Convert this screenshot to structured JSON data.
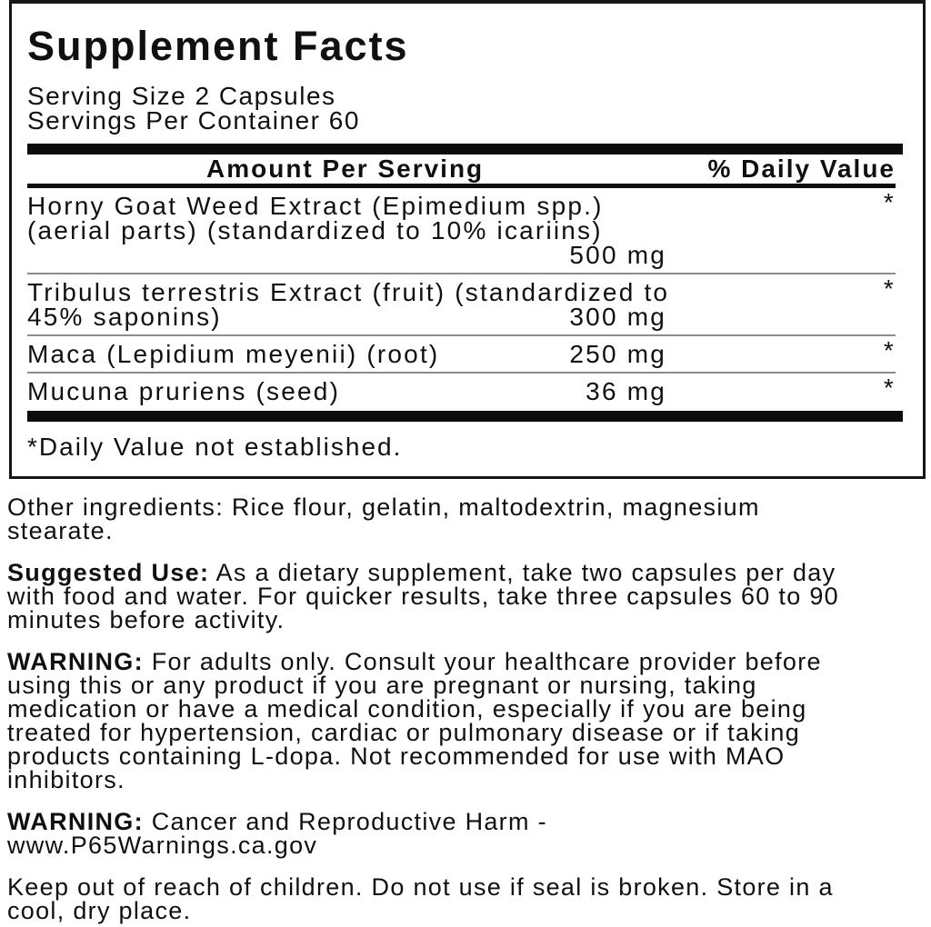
{
  "panel": {
    "title": "Supplement Facts",
    "serving_size": "Serving Size 2 Capsules",
    "servings_per_container": "Servings Per Container 60",
    "header": {
      "amount": "Amount Per Serving",
      "daily_value": "% Daily Value"
    },
    "rows": [
      {
        "line1": "Horny Goat Weed Extract (Epimedium spp.)",
        "line2": "(aerial parts) (standardized to 10% icariins)",
        "amount": "500 mg",
        "dv": "*"
      },
      {
        "line1": "Tribulus terrestris Extract (fruit) (standardized to",
        "line2": "45% saponins)",
        "amount": "300 mg",
        "dv": "*"
      },
      {
        "line1": "Maca (Lepidium meyenii) (root)",
        "amount": "250 mg",
        "dv": "*"
      },
      {
        "line1": "Mucuna pruriens (seed)",
        "amount": "36 mg",
        "dv": "*"
      }
    ],
    "footnote": "*Daily Value not established."
  },
  "info": {
    "other_ingredients": "Other ingredients: Rice flour, gelatin, maltodextrin, magnesium\nstearate.",
    "suggested_use_label": "Suggested Use:",
    "suggested_use_text": " As a dietary supplement, take two capsules per day\nwith food and water. For quicker results, take three capsules 60 to 90\nminutes before activity.",
    "warning1_label": "WARNING:",
    "warning1_text": " For adults only. Consult your healthcare provider before\nusing this or any product if you are pregnant or nursing, taking\nmedication or have a medical condition, especially if you are being\ntreated for hypertension, cardiac or pulmonary disease or if taking\nproducts containing L-dopa. Not recommended for use with MAO\ninhibitors.",
    "warning2_label": "WARNING:",
    "warning2_text": " Cancer and Reproductive Harm -\nwww.P65Warnings.ca.gov",
    "storage": "Keep out of reach of children. Do not use if seal is broken. Store in a\ncool, dry place."
  }
}
